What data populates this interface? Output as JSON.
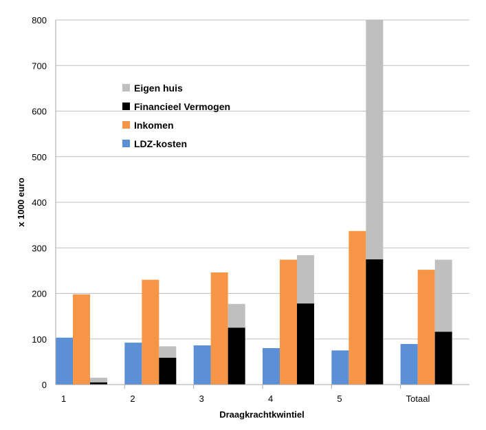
{
  "chart_data": {
    "type": "bar",
    "title": "",
    "xlabel": "Draagkrachtkwintiel",
    "ylabel": "x 1000 euro",
    "ylim": [
      0,
      800
    ],
    "yticks": [
      0,
      100,
      200,
      300,
      400,
      500,
      600,
      700,
      800
    ],
    "grid": true,
    "legend_position": "upper-left",
    "categories": [
      "1",
      "2",
      "3",
      "4",
      "5",
      "Totaal"
    ],
    "series": [
      {
        "name": "LDZ-kosten",
        "color": "#5B8FD6",
        "stack": "ldz",
        "values": [
          103,
          92,
          86,
          80,
          75,
          89
        ]
      },
      {
        "name": "Inkomen",
        "color": "#F79646",
        "stack": "inkomen",
        "values": [
          198,
          230,
          246,
          274,
          337,
          252
        ]
      },
      {
        "name": "Financieel Vermogen",
        "color": "#000000",
        "stack": "vermogen",
        "values": [
          5,
          59,
          125,
          178,
          275,
          116
        ]
      },
      {
        "name": "Eigen huis",
        "color": "#BFBFBF",
        "stack": "vermogen",
        "values": [
          10,
          25,
          52,
          106,
          545,
          158
        ]
      }
    ],
    "legend_order": [
      "Eigen huis",
      "Financieel Vermogen",
      "Inkomen",
      "LDZ-kosten"
    ]
  }
}
